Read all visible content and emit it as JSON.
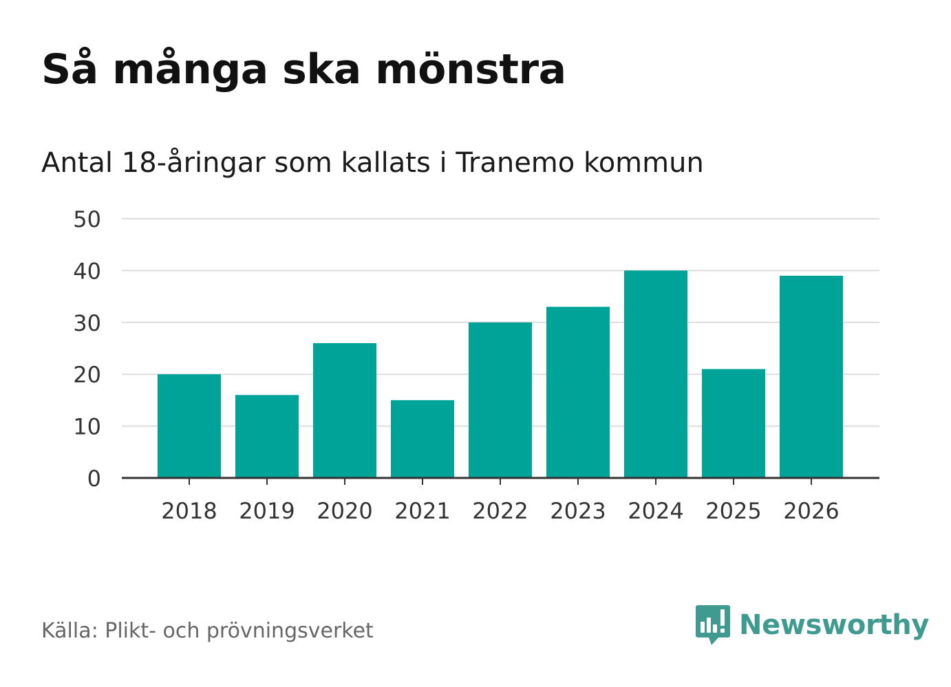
{
  "header": {
    "title": "Så många ska mönstra",
    "subtitle": "Antal 18-åringar som kallats i Tranemo kommun"
  },
  "footer": {
    "source": "Källa: Plikt- och prövningsverket",
    "brand": "Newsworthy"
  },
  "colors": {
    "bar": "#00a398",
    "grid": "#dddddd",
    "axis": "#333333",
    "tick_text": "#333333",
    "brand": "#3f9a8f"
  },
  "chart_data": {
    "type": "bar",
    "title": "Så många ska mönstra",
    "subtitle": "Antal 18-åringar som kallats i Tranemo kommun",
    "xlabel": "",
    "ylabel": "",
    "categories": [
      "2018",
      "2019",
      "2020",
      "2021",
      "2022",
      "2023",
      "2024",
      "2025",
      "2026"
    ],
    "values": [
      20,
      16,
      26,
      15,
      30,
      33,
      40,
      21,
      39
    ],
    "ylim": [
      0,
      50
    ],
    "yticks": [
      0,
      10,
      20,
      30,
      40,
      50
    ],
    "ytick_labels": [
      "0",
      "10",
      "20",
      "30",
      "40",
      "50"
    ],
    "grid": true,
    "legend": "none"
  }
}
